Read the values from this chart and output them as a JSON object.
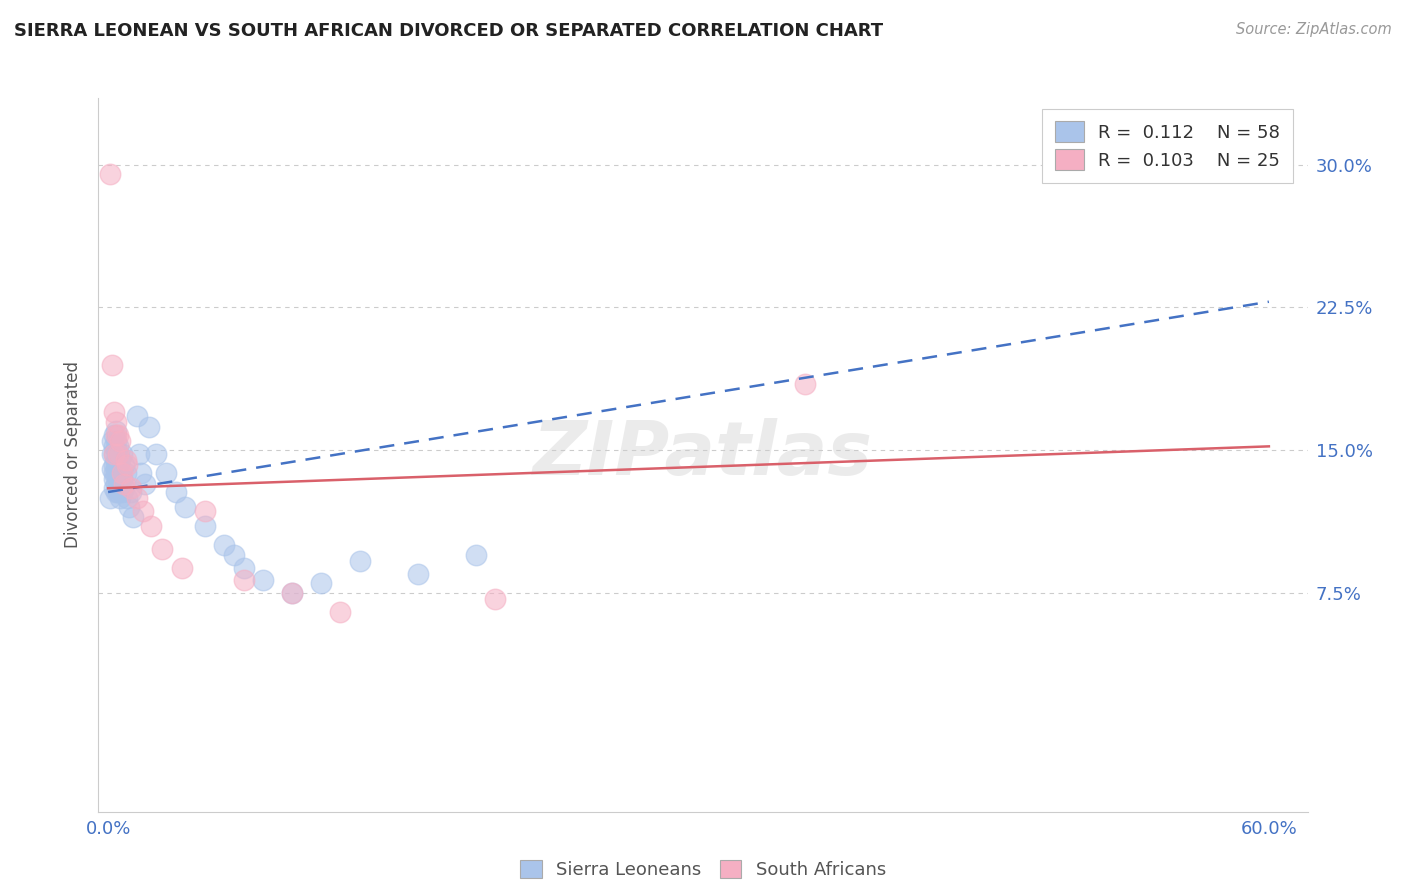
{
  "title": "SIERRA LEONEAN VS SOUTH AFRICAN DIVORCED OR SEPARATED CORRELATION CHART",
  "source": "Source: ZipAtlas.com",
  "legend_label1": "Sierra Leoneans",
  "legend_label2": "South Africans",
  "ylabel": "Divorced or Separated",
  "xlim": [
    -0.005,
    0.62
  ],
  "ylim": [
    -0.04,
    0.335
  ],
  "yticks": [
    0.075,
    0.15,
    0.225,
    0.3
  ],
  "ytick_labels": [
    "7.5%",
    "15.0%",
    "22.5%",
    "30.0%"
  ],
  "blue_color": "#aac4ea",
  "pink_color": "#f5afc3",
  "trend_blue_color": "#4472c4",
  "trend_pink_color": "#d9606a",
  "watermark": "ZIPatlas",
  "legend_r1": "R =  0.112    N = 58",
  "legend_r2": "R =  0.103    N = 25",
  "trend_blue_y0": 0.128,
  "trend_blue_y1": 0.228,
  "trend_pink_y0": 0.13,
  "trend_pink_y1": 0.152,
  "sierra_x": [
    0.001,
    0.002,
    0.002,
    0.002,
    0.003,
    0.003,
    0.003,
    0.003,
    0.003,
    0.003,
    0.003,
    0.004,
    0.004,
    0.004,
    0.004,
    0.004,
    0.004,
    0.004,
    0.004,
    0.005,
    0.005,
    0.005,
    0.005,
    0.005,
    0.005,
    0.006,
    0.006,
    0.006,
    0.006,
    0.007,
    0.007,
    0.007,
    0.008,
    0.008,
    0.009,
    0.01,
    0.011,
    0.012,
    0.013,
    0.015,
    0.016,
    0.017,
    0.019,
    0.021,
    0.025,
    0.03,
    0.035,
    0.04,
    0.05,
    0.06,
    0.065,
    0.07,
    0.08,
    0.095,
    0.11,
    0.13,
    0.16,
    0.19
  ],
  "sierra_y": [
    0.125,
    0.14,
    0.148,
    0.155,
    0.13,
    0.135,
    0.138,
    0.142,
    0.148,
    0.152,
    0.158,
    0.128,
    0.132,
    0.138,
    0.142,
    0.145,
    0.15,
    0.155,
    0.16,
    0.128,
    0.132,
    0.138,
    0.142,
    0.148,
    0.152,
    0.125,
    0.13,
    0.138,
    0.145,
    0.128,
    0.135,
    0.148,
    0.13,
    0.142,
    0.138,
    0.125,
    0.12,
    0.128,
    0.115,
    0.168,
    0.148,
    0.138,
    0.132,
    0.162,
    0.148,
    0.138,
    0.128,
    0.12,
    0.11,
    0.1,
    0.095,
    0.088,
    0.082,
    0.075,
    0.08,
    0.092,
    0.085,
    0.095
  ],
  "sa_x": [
    0.001,
    0.002,
    0.003,
    0.003,
    0.004,
    0.004,
    0.005,
    0.005,
    0.006,
    0.007,
    0.008,
    0.009,
    0.01,
    0.012,
    0.015,
    0.018,
    0.022,
    0.028,
    0.038,
    0.05,
    0.07,
    0.095,
    0.12,
    0.2,
    0.36
  ],
  "sa_y": [
    0.295,
    0.195,
    0.17,
    0.148,
    0.165,
    0.158,
    0.148,
    0.158,
    0.155,
    0.138,
    0.132,
    0.145,
    0.142,
    0.13,
    0.125,
    0.118,
    0.11,
    0.098,
    0.088,
    0.118,
    0.082,
    0.075,
    0.065,
    0.072,
    0.185
  ]
}
